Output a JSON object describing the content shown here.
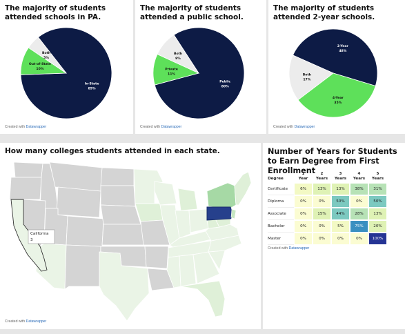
{
  "panels": {
    "pa": {
      "title": "The majority of students attended schools in PA."
    },
    "public": {
      "title": "The majority of students attended a public school."
    },
    "two_year": {
      "title": "The majority of students attended 2-year schools."
    },
    "map": {
      "title": "How many colleges students attended in each state.",
      "tooltip_state": "California",
      "tooltip_value": "3"
    },
    "years": {
      "title": "Number of Years for Students to Earn Degree from First Enrollment"
    }
  },
  "credit": {
    "prefix": "Created with ",
    "tool": "Datawrapper"
  },
  "colors": {
    "navy": "#0d1b45",
    "green": "#5ee05a",
    "light": "#ececec",
    "pa": "#26408c"
  },
  "chart_data": [
    {
      "type": "pie",
      "title": "The majority of students attended schools in PA.",
      "slices": [
        {
          "label": "In-State",
          "value": 85,
          "pct_label": "85%",
          "color": "#0d1b45"
        },
        {
          "label": "Out-of-State",
          "value": 10,
          "pct_label": "10%",
          "color": "#5ee05a"
        },
        {
          "label": "Both",
          "value": 5,
          "pct_label": "5%",
          "color": "#ececec"
        }
      ]
    },
    {
      "type": "pie",
      "title": "The majority of students attended a public school.",
      "slices": [
        {
          "label": "Public",
          "value": 80,
          "pct_label": "80%",
          "color": "#0d1b45"
        },
        {
          "label": "Private",
          "value": 11,
          "pct_label": "11%",
          "color": "#5ee05a"
        },
        {
          "label": "Both",
          "value": 9,
          "pct_label": "9%",
          "color": "#ececec"
        }
      ]
    },
    {
      "type": "pie",
      "title": "The majority of students attended 2-year schools.",
      "slices": [
        {
          "label": "2-Year",
          "value": 48,
          "pct_label": "48%",
          "color": "#0d1b45"
        },
        {
          "label": "4-Year",
          "value": 35,
          "pct_label": "35%",
          "color": "#5ee05a"
        },
        {
          "label": "Both",
          "value": 17,
          "pct_label": "17%",
          "color": "#ececec"
        }
      ]
    },
    {
      "type": "heatmap",
      "title": "Number of Years for Students to Earn Degree from First Enrollment",
      "row_header": "Degree",
      "columns": [
        "1 Year",
        "2 Years",
        "3 Years",
        "4 Years",
        "5 Years"
      ],
      "rows": [
        {
          "label": "Certificate",
          "values": [
            6,
            13,
            13,
            38,
            31
          ],
          "labels": [
            "6%",
            "13%",
            "13%",
            "38%",
            "31%"
          ]
        },
        {
          "label": "Diploma",
          "values": [
            0,
            0,
            50,
            0,
            50
          ],
          "labels": [
            "0%",
            "0%",
            "50%",
            "0%",
            "50%"
          ]
        },
        {
          "label": "Associate",
          "values": [
            0,
            15,
            44,
            28,
            13
          ],
          "labels": [
            "0%",
            "15%",
            "44%",
            "28%",
            "13%"
          ]
        },
        {
          "label": "Bachelor",
          "values": [
            0,
            0,
            5,
            75,
            20
          ],
          "labels": [
            "0%",
            "0%",
            "5%",
            "75%",
            "20%"
          ]
        },
        {
          "label": "Master",
          "values": [
            0,
            0,
            0,
            0,
            100
          ],
          "labels": [
            "0%",
            "0%",
            "0%",
            "0%",
            "100%"
          ]
        }
      ]
    }
  ]
}
